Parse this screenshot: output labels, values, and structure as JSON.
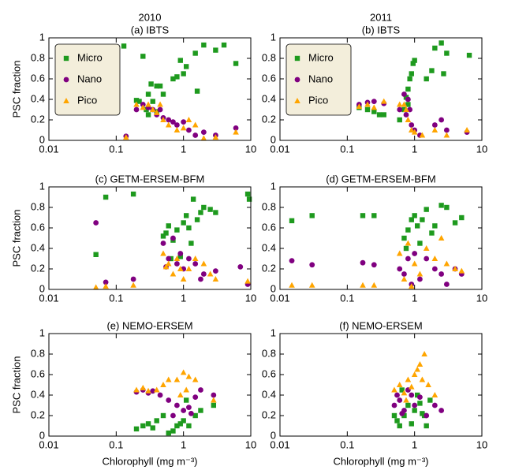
{
  "chart_data": [
    {
      "type": "scatter",
      "heading": "2010",
      "title": "(a) IBTS",
      "ylabel": "PSC fraction",
      "legend": "upper left",
      "xscale": "log",
      "xlim": [
        0.01,
        10
      ],
      "xticks": [
        0.01,
        0.1,
        1,
        10
      ],
      "ylim": [
        0,
        1
      ],
      "yticks": [
        0,
        0.2,
        0.4,
        0.6,
        0.8,
        1
      ],
      "series": [
        {
          "name": "Micro",
          "color": "#1e9a1e",
          "marker": "square",
          "x": [
            0.13,
            0.2,
            0.22,
            0.25,
            0.28,
            0.3,
            0.33,
            0.35,
            0.4,
            0.45,
            0.5,
            0.7,
            0.8,
            0.9,
            1,
            1.1,
            1.5,
            1.6,
            2,
            3,
            4,
            6,
            0.3,
            0.4
          ],
          "values": [
            0.92,
            0.39,
            0.38,
            0.82,
            0.3,
            0.45,
            0.55,
            0.38,
            0.53,
            0.53,
            0.45,
            0.6,
            0.62,
            0.78,
            0.65,
            0.72,
            0.85,
            0.48,
            0.93,
            0.88,
            0.93,
            0.75,
            0.25,
            0.28
          ]
        },
        {
          "name": "Nano",
          "color": "#800080",
          "marker": "circle",
          "x": [
            0.14,
            0.2,
            0.25,
            0.3,
            0.35,
            0.4,
            0.5,
            0.6,
            0.7,
            0.8,
            1,
            1.2,
            1.5,
            2,
            3,
            6,
            0.45
          ],
          "values": [
            0.04,
            0.3,
            0.35,
            0.32,
            0.3,
            0.25,
            0.22,
            0.2,
            0.18,
            0.15,
            0.18,
            0.1,
            0.05,
            0.08,
            0.05,
            0.12,
            0.3
          ]
        },
        {
          "name": "Pico",
          "color": "#ffa500",
          "marker": "triangle",
          "x": [
            0.14,
            0.2,
            0.25,
            0.3,
            0.35,
            0.4,
            0.5,
            0.6,
            0.8,
            1,
            1.5,
            2,
            3,
            6,
            0.45,
            1.2
          ],
          "values": [
            0.03,
            0.35,
            0.32,
            0.35,
            0.3,
            0.27,
            0.2,
            0.15,
            0.1,
            0.12,
            0.15,
            0.02,
            0.03,
            0.08,
            0.35,
            0.2
          ]
        }
      ]
    },
    {
      "type": "scatter",
      "heading": "2011",
      "title": "(b) IBTS",
      "legend": "upper left",
      "xscale": "log",
      "xlim": [
        0.01,
        10
      ],
      "xticks": [
        0.01,
        0.1,
        1,
        10
      ],
      "ylim": [
        0,
        1
      ],
      "yticks": [
        0,
        0.2,
        0.4,
        0.6,
        0.8,
        1
      ],
      "series": [
        {
          "name": "Micro",
          "color": "#1e9a1e",
          "marker": "square",
          "x": [
            0.15,
            0.2,
            0.25,
            0.3,
            0.35,
            0.6,
            0.7,
            0.75,
            0.8,
            0.85,
            0.9,
            0.95,
            1,
            1.8,
            2,
            2.5,
            2.7,
            3,
            6.5,
            0.8,
            1.5
          ],
          "values": [
            0.32,
            0.3,
            0.28,
            0.25,
            0.25,
            0.2,
            0.3,
            0.42,
            0.5,
            0.6,
            0.65,
            0.75,
            0.78,
            0.68,
            0.9,
            0.95,
            0.65,
            0.85,
            0.83,
            0.35,
            0.6
          ]
        },
        {
          "name": "Nano",
          "color": "#800080",
          "marker": "circle",
          "x": [
            0.15,
            0.2,
            0.25,
            0.35,
            0.6,
            0.7,
            0.8,
            0.85,
            0.9,
            1,
            1.2,
            2,
            2.5,
            3,
            6,
            0.75
          ],
          "values": [
            0.35,
            0.37,
            0.38,
            0.36,
            0.3,
            0.45,
            0.4,
            0.3,
            0.15,
            0.1,
            0.05,
            0.15,
            0.2,
            0.1,
            0.08,
            0.25
          ]
        },
        {
          "name": "Pico",
          "color": "#ffa500",
          "marker": "triangle",
          "x": [
            0.15,
            0.2,
            0.25,
            0.35,
            0.6,
            0.7,
            0.8,
            0.9,
            1,
            1.3,
            2,
            3,
            6,
            0.75
          ],
          "values": [
            0.33,
            0.35,
            0.32,
            0.38,
            0.35,
            0.35,
            0.2,
            0.1,
            0.08,
            0.05,
            0.1,
            0.05,
            0.1,
            0.3
          ]
        }
      ]
    },
    {
      "type": "scatter",
      "title": "(c) GETM-ERSEM-BFM",
      "ylabel": "PSC fraction",
      "xscale": "log",
      "xlim": [
        0.01,
        10
      ],
      "xticks": [
        0.01,
        0.1,
        1,
        10
      ],
      "ylim": [
        0,
        1
      ],
      "yticks": [
        0,
        0.2,
        0.4,
        0.6,
        0.8,
        1
      ],
      "series": [
        {
          "name": "Micro",
          "color": "#1e9a1e",
          "marker": "square",
          "x": [
            0.05,
            0.07,
            0.18,
            0.5,
            0.55,
            0.6,
            0.7,
            0.8,
            0.9,
            1,
            1.1,
            1.2,
            1.4,
            1.6,
            1.8,
            2,
            2.5,
            3,
            9,
            9.5,
            1.3,
            0.65
          ],
          "values": [
            0.34,
            0.9,
            0.93,
            0.52,
            0.55,
            0.62,
            0.48,
            0.58,
            0.32,
            0.65,
            0.72,
            0.6,
            0.88,
            0.68,
            0.75,
            0.8,
            0.78,
            0.75,
            0.93,
            0.88,
            0.45,
            0.3
          ]
        },
        {
          "name": "Nano",
          "color": "#800080",
          "marker": "circle",
          "x": [
            0.05,
            0.07,
            0.18,
            0.5,
            0.6,
            0.7,
            0.8,
            0.9,
            1,
            1.2,
            1.5,
            2,
            3,
            7,
            9,
            1.8,
            0.55
          ],
          "values": [
            0.65,
            0.07,
            0.1,
            0.45,
            0.3,
            0.5,
            0.25,
            0.35,
            0.2,
            0.3,
            0.25,
            0.15,
            0.18,
            0.22,
            0.05,
            0.1,
            0.22
          ]
        },
        {
          "name": "Pico",
          "color": "#ffa500",
          "marker": "triangle",
          "x": [
            0.05,
            0.07,
            0.18,
            0.5,
            0.55,
            0.6,
            0.7,
            0.8,
            1,
            1.2,
            1.5,
            2,
            2.5,
            3,
            9,
            0.9
          ],
          "values": [
            0.02,
            0.03,
            0.04,
            0.35,
            0.22,
            0.25,
            0.15,
            0.3,
            0.1,
            0.2,
            0.3,
            0.25,
            0.15,
            0.1,
            0.08,
            0.2
          ]
        }
      ]
    },
    {
      "type": "scatter",
      "title": "(d) GETM-ERSEM-BFM",
      "xscale": "log",
      "xlim": [
        0.01,
        10
      ],
      "xticks": [
        0.01,
        0.1,
        1,
        10
      ],
      "ylim": [
        0,
        1
      ],
      "yticks": [
        0,
        0.2,
        0.4,
        0.6,
        0.8,
        1
      ],
      "series": [
        {
          "name": "Micro",
          "color": "#1e9a1e",
          "marker": "square",
          "x": [
            0.015,
            0.03,
            0.17,
            0.25,
            0.7,
            0.8,
            0.9,
            1,
            1.1,
            1.3,
            1.5,
            2,
            2.5,
            3,
            4,
            5,
            1.2,
            0.75,
            1.8
          ],
          "values": [
            0.67,
            0.72,
            0.72,
            0.72,
            0.5,
            0.58,
            0.68,
            0.72,
            0.62,
            0.68,
            0.78,
            0.62,
            0.82,
            0.8,
            0.65,
            0.7,
            0.45,
            0.4,
            0.55
          ]
        },
        {
          "name": "Nano",
          "color": "#800080",
          "marker": "circle",
          "x": [
            0.015,
            0.03,
            0.17,
            0.25,
            0.6,
            0.7,
            0.8,
            1,
            1.2,
            1.5,
            2,
            2.5,
            3,
            4,
            5,
            0.9
          ],
          "values": [
            0.28,
            0.24,
            0.26,
            0.24,
            0.2,
            0.15,
            0.3,
            0.35,
            0.1,
            0.3,
            0.2,
            0.15,
            0.05,
            0.2,
            0.15,
            0.05
          ]
        },
        {
          "name": "Pico",
          "color": "#ffa500",
          "marker": "triangle",
          "x": [
            0.015,
            0.03,
            0.17,
            0.25,
            0.6,
            0.7,
            0.8,
            1,
            1.2,
            1.5,
            2,
            2.5,
            3,
            4,
            5,
            0.9
          ],
          "values": [
            0.04,
            0.04,
            0.04,
            0.04,
            0.35,
            0.1,
            0.45,
            0.25,
            0.15,
            0.4,
            0.3,
            0.5,
            0.25,
            0.2,
            0.18,
            0.03
          ]
        }
      ]
    },
    {
      "type": "scatter",
      "title": "(e) NEMO-ERSEM",
      "ylabel": "PSC fraction",
      "xlabel": "Chlorophyll (mg m⁻³)",
      "xscale": "log",
      "xlim": [
        0.01,
        10
      ],
      "xticks": [
        0.01,
        0.1,
        1,
        10
      ],
      "ylim": [
        0,
        1
      ],
      "yticks": [
        0,
        0.2,
        0.4,
        0.6,
        0.8,
        1
      ],
      "series": [
        {
          "name": "Micro",
          "color": "#1e9a1e",
          "marker": "square",
          "x": [
            0.2,
            0.25,
            0.3,
            0.35,
            0.4,
            0.5,
            0.6,
            0.7,
            0.8,
            0.9,
            1,
            1.2,
            1.5,
            1.8,
            2.8,
            1.1
          ],
          "values": [
            0.07,
            0.1,
            0.12,
            0.08,
            0.15,
            0.2,
            0.03,
            0.05,
            0.1,
            0.12,
            0.15,
            0.1,
            0.2,
            0.25,
            0.3,
            0.35
          ]
        },
        {
          "name": "Nano",
          "color": "#800080",
          "marker": "circle",
          "x": [
            0.2,
            0.25,
            0.3,
            0.35,
            0.45,
            0.6,
            0.8,
            1,
            1.2,
            1.5,
            1.8,
            2.8,
            0.7,
            1.3
          ],
          "values": [
            0.43,
            0.45,
            0.42,
            0.44,
            0.4,
            0.35,
            0.3,
            0.25,
            0.28,
            0.38,
            0.45,
            0.4,
            0.2,
            0.22
          ]
        },
        {
          "name": "Pico",
          "color": "#ffa500",
          "marker": "triangle",
          "x": [
            0.2,
            0.25,
            0.3,
            0.4,
            0.5,
            0.6,
            0.8,
            1,
            1.2,
            1.5,
            2.8,
            0.9,
            1.1
          ],
          "values": [
            0.45,
            0.47,
            0.44,
            0.45,
            0.5,
            0.55,
            0.55,
            0.62,
            0.58,
            0.55,
            0.35,
            0.4,
            0.45
          ]
        }
      ]
    },
    {
      "type": "scatter",
      "title": "(f) NEMO-ERSEM",
      "xlabel": "Chlorophyll (mg m⁻³)",
      "xscale": "log",
      "xlim": [
        0.01,
        10
      ],
      "xticks": [
        0.01,
        0.1,
        1,
        10
      ],
      "ylim": [
        0,
        1
      ],
      "yticks": [
        0,
        0.2,
        0.4,
        0.6,
        0.8,
        1
      ],
      "series": [
        {
          "name": "Micro",
          "color": "#1e9a1e",
          "marker": "square",
          "x": [
            0.5,
            0.55,
            0.6,
            0.7,
            0.8,
            0.9,
            1,
            1.1,
            1.2,
            1.3,
            1.5,
            1.7,
            0.65,
            1.4
          ],
          "values": [
            0.2,
            0.15,
            0.1,
            0.2,
            0.3,
            0.12,
            0.25,
            0.4,
            0.32,
            0.22,
            0.1,
            0.35,
            0.45,
            0.2
          ]
        },
        {
          "name": "Nano",
          "color": "#800080",
          "marker": "circle",
          "x": [
            0.5,
            0.55,
            0.6,
            0.7,
            0.8,
            0.9,
            1,
            1.2,
            1.5,
            2,
            2.5,
            0.65
          ],
          "values": [
            0.3,
            0.4,
            0.35,
            0.25,
            0.45,
            0.4,
            0.3,
            0.38,
            0.2,
            0.3,
            0.25,
            0.22
          ]
        },
        {
          "name": "Pico",
          "color": "#ffa500",
          "marker": "triangle",
          "x": [
            0.5,
            0.6,
            0.7,
            0.8,
            0.9,
            1,
            1.1,
            1.2,
            1.3,
            1.4,
            1.6,
            2,
            0.75
          ],
          "values": [
            0.45,
            0.5,
            0.42,
            0.55,
            0.48,
            0.6,
            0.65,
            0.7,
            0.55,
            0.8,
            0.5,
            0.4,
            0.35
          ]
        }
      ]
    }
  ]
}
